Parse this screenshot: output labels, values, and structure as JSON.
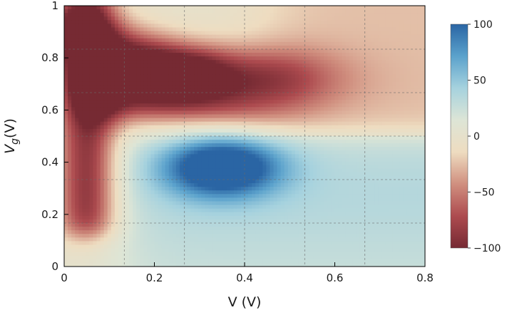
{
  "chart_data": {
    "type": "heatmap",
    "title": "",
    "xlabel": "V (V)",
    "ylabel": "V",
    "ylabel_subscript": "g",
    "ylabel_unit": "(V)",
    "xlim": [
      0,
      0.8
    ],
    "ylim": [
      0,
      1
    ],
    "x_ticks": [
      {
        "value": 0,
        "label": "0"
      },
      {
        "value": 0.2,
        "label": "0.2"
      },
      {
        "value": 0.4,
        "label": "0.4"
      },
      {
        "value": 0.6,
        "label": "0.6"
      },
      {
        "value": 0.8,
        "label": "0.8"
      }
    ],
    "y_ticks": [
      {
        "value": 0,
        "label": "0"
      },
      {
        "value": 0.2,
        "label": "0.2"
      },
      {
        "value": 0.4,
        "label": "0.4"
      },
      {
        "value": 0.6,
        "label": "0.6"
      },
      {
        "value": 0.8,
        "label": "0.8"
      },
      {
        "value": 1,
        "label": "1"
      }
    ],
    "grid": true,
    "grid_x": [
      0.1333,
      0.2667,
      0.4,
      0.5333,
      0.6667
    ],
    "grid_y": [
      0.1667,
      0.3333,
      0.5,
      0.6667,
      0.8333
    ],
    "colorbar": {
      "min": -100,
      "max": 100,
      "ticks": [
        {
          "value": 100,
          "label": "100"
        },
        {
          "value": 50,
          "label": "50"
        },
        {
          "value": 0,
          "label": "0"
        },
        {
          "value": -50,
          "label": "−50"
        },
        {
          "value": -100,
          "label": "−100"
        }
      ],
      "colors": [
        "#762a33",
        "#ad4b4f",
        "#d08f7f",
        "#eedcc0",
        "#dde5d6",
        "#a6d2de",
        "#5ba2cc",
        "#2a65a4"
      ]
    },
    "features": [
      {
        "kind": "red-arm",
        "x0": 0.02,
        "x1": 0.55,
        "y_start": 0.72,
        "y_end": 0.72,
        "sigma": 0.085,
        "amp": -90
      },
      {
        "kind": "red-arm",
        "x0": 0.05,
        "x1": 0.45,
        "y_start": 0.63,
        "y_end": 0.6,
        "sigma": 0.06,
        "amp": -40
      },
      {
        "kind": "red-diagonal",
        "from": [
          0.02,
          0.9
        ],
        "to": [
          0.25,
          0.75
        ],
        "sigma": 0.07,
        "amp": -70
      },
      {
        "kind": "red-column",
        "x": 0.05,
        "y0": 0.12,
        "y1": 1.0,
        "width": 0.045,
        "amp": -90
      },
      {
        "kind": "blue-blob",
        "x": 0.35,
        "y": 0.38,
        "sx": 0.09,
        "sy": 0.08,
        "amp": 110
      },
      {
        "kind": "blue-band",
        "x0": 0.12,
        "x1": 0.8,
        "y": 0.28,
        "amp": 35
      }
    ]
  }
}
